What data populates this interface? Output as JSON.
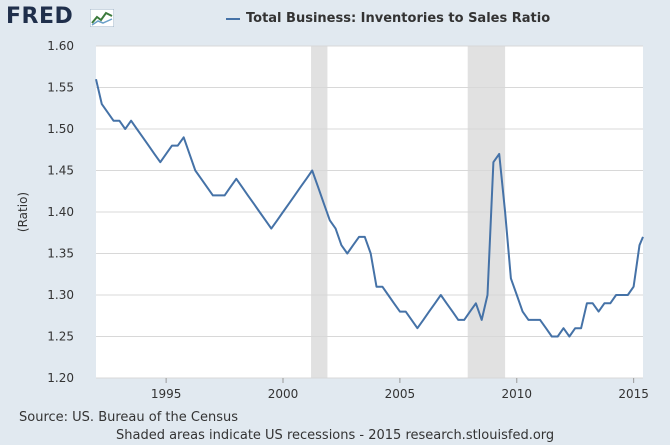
{
  "header": {
    "logo_text": "FRED",
    "logo_icon": "fred-graph-icon"
  },
  "chart_data": {
    "type": "line",
    "legend": "Total Business: Inventories to Sales Ratio",
    "ylabel": "(Ratio)",
    "xlabel": "",
    "ylim": [
      1.2,
      1.6
    ],
    "yticks": [
      "1.20",
      "1.25",
      "1.30",
      "1.35",
      "1.40",
      "1.45",
      "1.50",
      "1.55",
      "1.60"
    ],
    "xlim": [
      1992.0,
      2015.4
    ],
    "xticks": [
      "1995",
      "2000",
      "2005",
      "2010",
      "2015"
    ],
    "grid": true,
    "legend_placement": "top",
    "series": [
      {
        "color": "#4572a7",
        "x": [
          1992.0,
          1992.25,
          1992.5,
          1992.75,
          1993.0,
          1993.25,
          1993.5,
          1993.75,
          1994.0,
          1994.25,
          1994.5,
          1994.75,
          1995.0,
          1995.25,
          1995.5,
          1995.75,
          1996.0,
          1996.25,
          1996.5,
          1996.75,
          1997.0,
          1997.25,
          1997.5,
          1997.75,
          1998.0,
          1998.25,
          1998.5,
          1998.75,
          1999.0,
          1999.25,
          1999.5,
          1999.75,
          2000.0,
          2000.25,
          2000.5,
          2000.75,
          2001.0,
          2001.25,
          2001.5,
          2001.75,
          2002.0,
          2002.25,
          2002.5,
          2002.75,
          2003.0,
          2003.25,
          2003.5,
          2003.75,
          2004.0,
          2004.25,
          2004.5,
          2004.75,
          2005.0,
          2005.25,
          2005.5,
          2005.75,
          2006.0,
          2006.25,
          2006.5,
          2006.75,
          2007.0,
          2007.25,
          2007.5,
          2007.75,
          2008.0,
          2008.25,
          2008.5,
          2008.75,
          2009.0,
          2009.25,
          2009.5,
          2009.75,
          2010.0,
          2010.25,
          2010.5,
          2010.75,
          2011.0,
          2011.25,
          2011.5,
          2011.75,
          2012.0,
          2012.25,
          2012.5,
          2012.75,
          2013.0,
          2013.25,
          2013.5,
          2013.75,
          2014.0,
          2014.25,
          2014.5,
          2014.75,
          2015.0,
          2015.25,
          2015.4
        ],
        "values": [
          1.56,
          1.53,
          1.52,
          1.51,
          1.51,
          1.5,
          1.51,
          1.5,
          1.49,
          1.48,
          1.47,
          1.46,
          1.47,
          1.48,
          1.48,
          1.49,
          1.47,
          1.45,
          1.44,
          1.43,
          1.42,
          1.42,
          1.42,
          1.43,
          1.44,
          1.43,
          1.42,
          1.41,
          1.4,
          1.39,
          1.38,
          1.39,
          1.4,
          1.41,
          1.42,
          1.43,
          1.44,
          1.45,
          1.43,
          1.41,
          1.39,
          1.38,
          1.36,
          1.35,
          1.36,
          1.37,
          1.37,
          1.35,
          1.31,
          1.31,
          1.3,
          1.29,
          1.28,
          1.28,
          1.27,
          1.26,
          1.27,
          1.28,
          1.29,
          1.3,
          1.29,
          1.28,
          1.27,
          1.27,
          1.28,
          1.29,
          1.27,
          1.3,
          1.46,
          1.47,
          1.4,
          1.32,
          1.3,
          1.28,
          1.27,
          1.27,
          1.27,
          1.26,
          1.25,
          1.25,
          1.26,
          1.25,
          1.26,
          1.26,
          1.29,
          1.29,
          1.28,
          1.29,
          1.29,
          1.3,
          1.3,
          1.3,
          1.31,
          1.36,
          1.37
        ]
      }
    ],
    "recessions": [
      [
        2001.2,
        2001.9
      ],
      [
        2007.9,
        2009.5
      ]
    ]
  },
  "footer": {
    "source": "Source: US. Bureau of the Census",
    "note": "Shaded areas indicate US recessions - 2015 research.stlouisfed.org"
  }
}
